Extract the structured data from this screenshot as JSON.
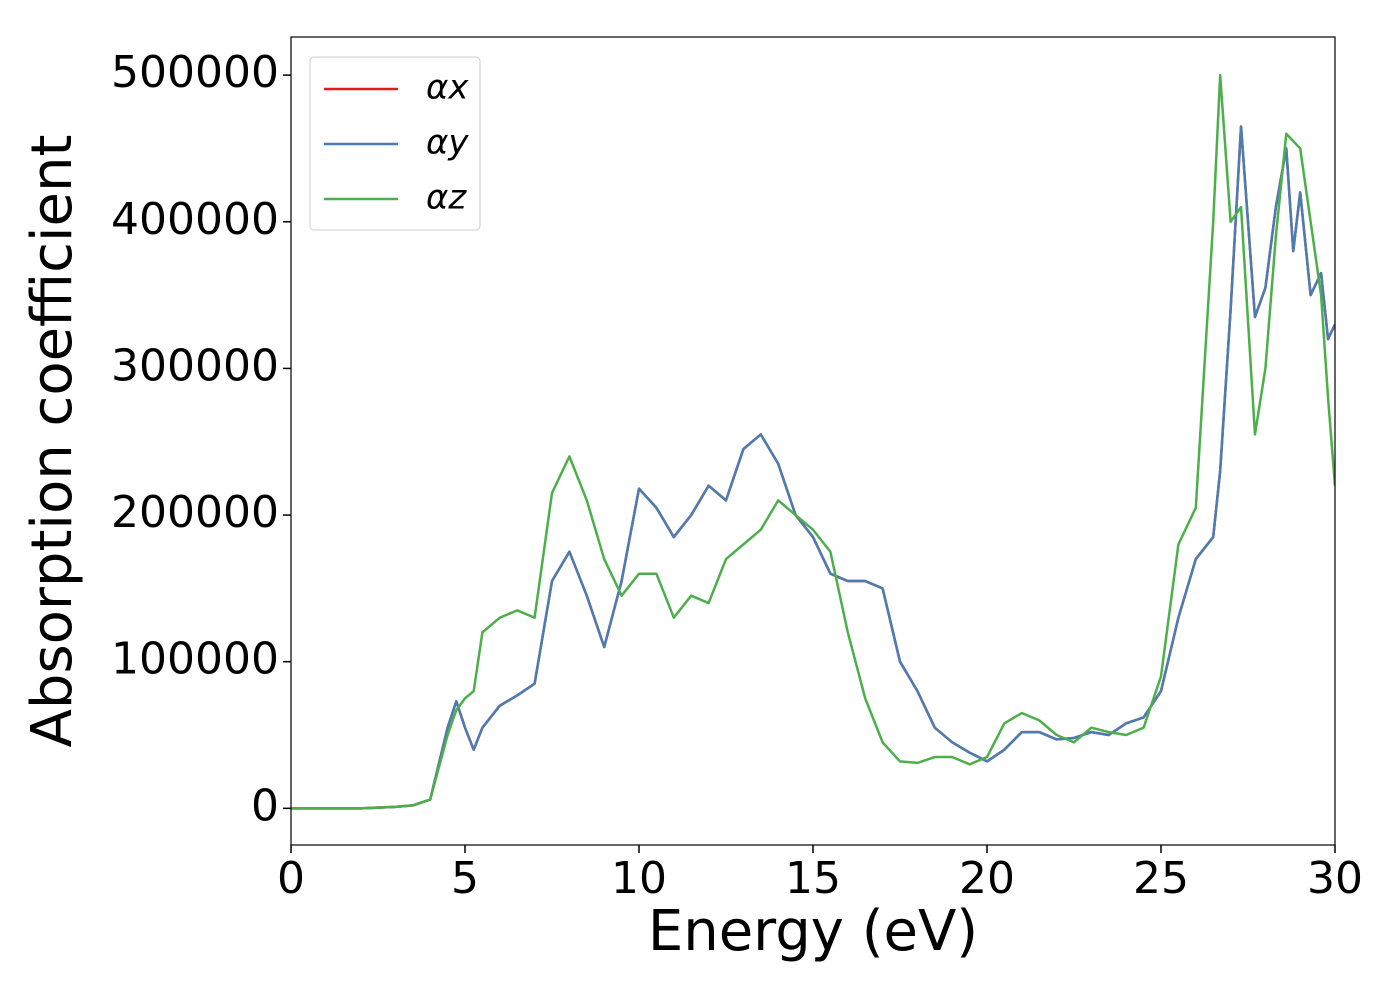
{
  "chart_data": {
    "type": "line",
    "xlabel": "Energy (eV)",
    "ylabel": "Absorption coefficient",
    "x": [
      0,
      1,
      2,
      3,
      3.5,
      4,
      4.5,
      4.75,
      5,
      5.25,
      5.5,
      6,
      6.5,
      7,
      7.5,
      8,
      8.5,
      9,
      9.5,
      10,
      10.5,
      11,
      11.5,
      12,
      12.5,
      13,
      13.5,
      14,
      14.5,
      15,
      15.5,
      16,
      16.5,
      17,
      17.5,
      18,
      18.5,
      19,
      19.5,
      20,
      20.5,
      21,
      21.5,
      22,
      22.5,
      23,
      23.5,
      24,
      24.5,
      25,
      25.5,
      26,
      26.5,
      26.7,
      27,
      27.3,
      27.7,
      28,
      28.3,
      28.6,
      28.8,
      29,
      29.3,
      29.6,
      29.8,
      30
    ],
    "series": [
      {
        "name": "αx",
        "color": "#e41a1c",
        "values": [
          0,
          0,
          0,
          1000,
          2000,
          6000,
          55000,
          73000,
          55000,
          40000,
          55000,
          70000,
          77000,
          85000,
          155000,
          175000,
          145000,
          110000,
          155000,
          218000,
          205000,
          185000,
          200000,
          220000,
          210000,
          245000,
          255000,
          235000,
          200000,
          185000,
          160000,
          155000,
          155000,
          150000,
          100000,
          80000,
          55000,
          45000,
          38000,
          32000,
          40000,
          52000,
          52000,
          47000,
          48000,
          52000,
          50000,
          58000,
          62000,
          80000,
          130000,
          170000,
          185000,
          230000,
          340000,
          465000,
          335000,
          355000,
          410000,
          450000,
          380000,
          420000,
          350000,
          365000,
          320000,
          330000
        ]
      },
      {
        "name": "αy",
        "color": "#4a7db3",
        "values": [
          0,
          0,
          0,
          1000,
          2000,
          6000,
          55000,
          73000,
          55000,
          40000,
          55000,
          70000,
          77000,
          85000,
          155000,
          175000,
          145000,
          110000,
          155000,
          218000,
          205000,
          185000,
          200000,
          220000,
          210000,
          245000,
          255000,
          235000,
          200000,
          185000,
          160000,
          155000,
          155000,
          150000,
          100000,
          80000,
          55000,
          45000,
          38000,
          32000,
          40000,
          52000,
          52000,
          47000,
          48000,
          52000,
          50000,
          58000,
          62000,
          80000,
          130000,
          170000,
          185000,
          230000,
          340000,
          465000,
          335000,
          355000,
          410000,
          450000,
          380000,
          420000,
          350000,
          365000,
          320000,
          330000
        ]
      },
      {
        "name": "αz",
        "color": "#4daf4a",
        "values": [
          0,
          0,
          0,
          1000,
          2000,
          6000,
          50000,
          67000,
          75000,
          80000,
          120000,
          130000,
          135000,
          130000,
          215000,
          240000,
          210000,
          170000,
          145000,
          160000,
          160000,
          130000,
          145000,
          140000,
          170000,
          180000,
          190000,
          210000,
          200000,
          190000,
          175000,
          120000,
          75000,
          45000,
          32000,
          31000,
          35000,
          35000,
          30000,
          35000,
          58000,
          65000,
          60000,
          50000,
          45000,
          55000,
          52000,
          50000,
          55000,
          90000,
          180000,
          205000,
          400000,
          500000,
          400000,
          410000,
          255000,
          300000,
          390000,
          460000,
          455000,
          450000,
          400000,
          350000,
          280000,
          220000
        ]
      }
    ],
    "xlim": [
      0,
      30
    ],
    "xticks": [
      0,
      5,
      10,
      15,
      20,
      25,
      30
    ],
    "ylim": [
      -25000,
      526000
    ],
    "yticks": [
      0,
      100000,
      200000,
      300000,
      400000,
      500000
    ],
    "legend": "upper left"
  }
}
